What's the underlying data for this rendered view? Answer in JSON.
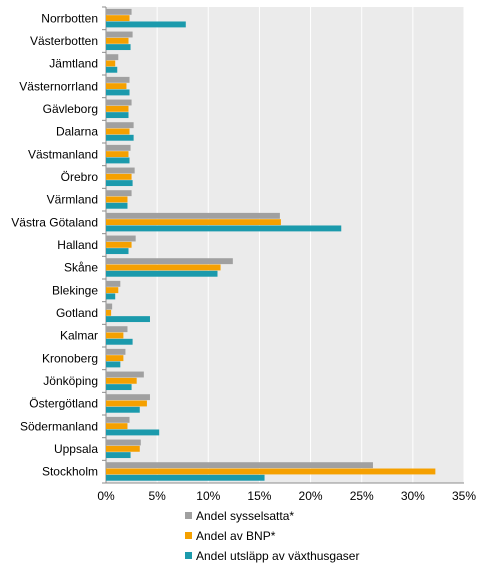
{
  "chart_data": {
    "type": "bar",
    "orientation": "horizontal",
    "categories": [
      "Norrbotten",
      "Västerbotten",
      "Jämtland",
      "Västernorrland",
      "Gävleborg",
      "Dalarna",
      "Västmanland",
      "Örebro",
      "Värmland",
      "Västra Götaland",
      "Halland",
      "Skåne",
      "Blekinge",
      "Gotland",
      "Kalmar",
      "Kronoberg",
      "Jönköping",
      "Östergötland",
      "Södermanland",
      "Uppsala",
      "Stockholm"
    ],
    "series": [
      {
        "name": "Andel sysselsatta*",
        "color": "#a0a0a0",
        "values": [
          2.5,
          2.6,
          1.2,
          2.3,
          2.5,
          2.7,
          2.4,
          2.8,
          2.5,
          17.0,
          2.9,
          12.4,
          1.4,
          0.6,
          2.1,
          1.9,
          3.7,
          4.3,
          2.3,
          3.4,
          26.1
        ]
      },
      {
        "name": "Andel av BNP*",
        "color": "#f5a000",
        "values": [
          2.3,
          2.2,
          0.9,
          2.0,
          2.2,
          2.3,
          2.2,
          2.5,
          2.1,
          17.1,
          2.5,
          11.2,
          1.2,
          0.5,
          1.7,
          1.7,
          3.0,
          4.0,
          2.1,
          3.3,
          32.2
        ]
      },
      {
        "name": "Andel utsläpp av växthusgaser",
        "color": "#1b9aac",
        "values": [
          7.8,
          2.4,
          1.1,
          2.3,
          2.2,
          2.7,
          2.3,
          2.6,
          2.1,
          23.0,
          2.2,
          10.9,
          0.9,
          4.3,
          2.6,
          1.4,
          2.5,
          3.3,
          5.2,
          2.4,
          15.5
        ]
      }
    ],
    "x_ticks": [
      "0%",
      "5%",
      "10%",
      "15%",
      "20%",
      "25%",
      "30%",
      "35%"
    ],
    "xlim": [
      0,
      35
    ],
    "grid": true,
    "legend_position": "bottom"
  }
}
